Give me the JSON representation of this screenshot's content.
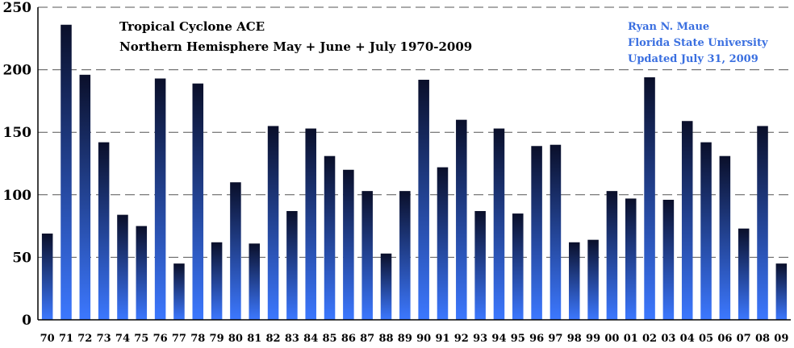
{
  "chart_data": {
    "type": "bar",
    "title": [
      "Tropical Cyclone ACE",
      "Northern Hemisphere May + June + July 1970-2009"
    ],
    "credits": [
      "Ryan N. Maue",
      "Florida State University",
      "Updated July 31, 2009"
    ],
    "categories": [
      "70",
      "71",
      "72",
      "73",
      "74",
      "75",
      "76",
      "77",
      "78",
      "79",
      "80",
      "81",
      "82",
      "83",
      "84",
      "85",
      "86",
      "87",
      "88",
      "89",
      "90",
      "91",
      "92",
      "93",
      "94",
      "95",
      "96",
      "97",
      "98",
      "99",
      "00",
      "01",
      "02",
      "03",
      "04",
      "05",
      "06",
      "07",
      "08",
      "09"
    ],
    "values": [
      69,
      236,
      196,
      142,
      84,
      75,
      193,
      45,
      189,
      62,
      110,
      61,
      155,
      87,
      153,
      131,
      120,
      103,
      53,
      103,
      192,
      122,
      160,
      87,
      153,
      85,
      139,
      140,
      62,
      64,
      103,
      97,
      194,
      96,
      159,
      142,
      131,
      73,
      155,
      45
    ],
    "ylim": [
      0,
      250
    ],
    "yticks": [
      0,
      50,
      100,
      150,
      200,
      250
    ],
    "xlabel": "",
    "ylabel": "",
    "grid": "horizontal-dashed",
    "colors": {
      "bar_top": "#0a0f2a",
      "bar_bottom": "#3c78ff",
      "grid": "#555555"
    }
  }
}
